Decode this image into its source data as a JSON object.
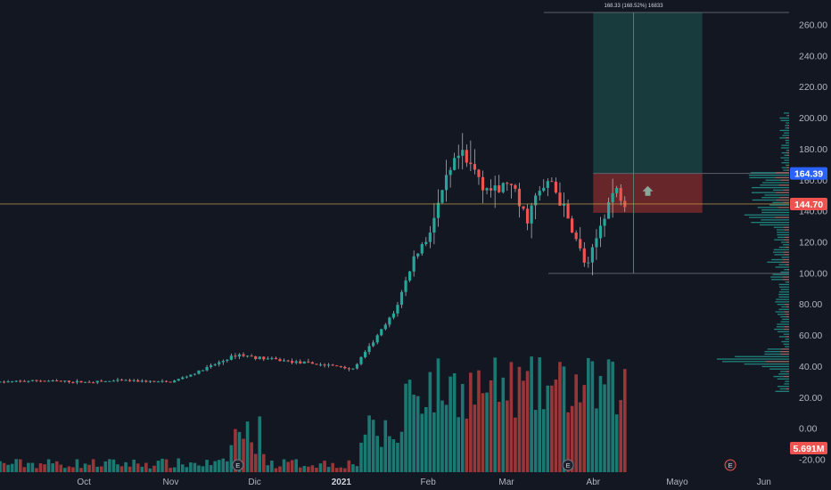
{
  "colors": {
    "background": "#131722",
    "up": "#26a69a",
    "down": "#ef5350",
    "vol_up": "#1f8a80",
    "vol_down": "#b23c3c",
    "axis_text": "#b2b5be",
    "crosshair": "#c8a24a",
    "target_fill": "#1e5b56",
    "stop_fill": "#7d2a2d",
    "price_badge": "#2962ff",
    "last_badge": "#ef5350",
    "profile": "#26a69a"
  },
  "chart_data": {
    "type": "candlestick",
    "price_axis": {
      "ticks": [
        "260.00",
        "240.00",
        "220.00",
        "200.00",
        "180.00",
        "160.00",
        "140.00",
        "120.00",
        "100.00",
        "80.00",
        "60.00",
        "40.00",
        "20.00",
        "0.00",
        "-20.00"
      ],
      "tick_values": [
        260,
        240,
        220,
        200,
        180,
        160,
        140,
        120,
        100,
        80,
        60,
        40,
        20,
        0,
        -20
      ],
      "range": [
        -28,
        268
      ]
    },
    "time_axis": {
      "labels": [
        {
          "text": "Oct",
          "date": "2020-10-01"
        },
        {
          "text": "Nov",
          "date": "2020-11-01"
        },
        {
          "text": "Dic",
          "date": "2020-12-01"
        },
        {
          "text": "2021",
          "date": "2021-01-01"
        },
        {
          "text": "Feb",
          "date": "2021-02-01"
        },
        {
          "text": "Mar",
          "date": "2021-03-01"
        },
        {
          "text": "Abr",
          "date": "2021-04-01"
        },
        {
          "text": "Mayo",
          "date": "2021-05-01"
        },
        {
          "text": "Jun",
          "date": "2021-06-01"
        }
      ],
      "range": [
        "2020-09-01",
        "2021-06-10"
      ]
    },
    "last_price": "144.70",
    "last_price_value": 144.7,
    "crosshair_price": "164.39",
    "crosshair_price_value": 164.39,
    "volume_label": "5.691M",
    "earnings_markers": [
      {
        "label": "E",
        "date": "2020-11-25"
      },
      {
        "label": "E",
        "date": "2021-03-23"
      },
      {
        "label": "E",
        "date": "2021-05-20"
      }
    ],
    "long_position": {
      "info": "168.33 (168.52%) 16833",
      "start_date": "2021-04-01",
      "end_date": "2021-05-10",
      "entry": 164.39,
      "stop": 139,
      "target": 268,
      "range_low": 100
    },
    "price_series": [
      {
        "date": "2020-09-01",
        "close": 30
      },
      {
        "date": "2020-09-15",
        "close": 31
      },
      {
        "date": "2020-10-01",
        "close": 30
      },
      {
        "date": "2020-10-15",
        "close": 31
      },
      {
        "date": "2020-11-01",
        "close": 30
      },
      {
        "date": "2020-11-10",
        "close": 36
      },
      {
        "date": "2020-11-25",
        "close": 48
      },
      {
        "date": "2020-12-01",
        "close": 46
      },
      {
        "date": "2020-12-15",
        "close": 43
      },
      {
        "date": "2021-01-01",
        "close": 40
      },
      {
        "date": "2021-01-05",
        "close": 38
      },
      {
        "date": "2021-01-12",
        "close": 55
      },
      {
        "date": "2021-01-20",
        "close": 75
      },
      {
        "date": "2021-01-27",
        "close": 110
      },
      {
        "date": "2021-02-01",
        "close": 125
      },
      {
        "date": "2021-02-08",
        "close": 160
      },
      {
        "date": "2021-02-12",
        "close": 175
      },
      {
        "date": "2021-02-18",
        "close": 165
      },
      {
        "date": "2021-02-25",
        "close": 150
      },
      {
        "date": "2021-03-01",
        "close": 160
      },
      {
        "date": "2021-03-08",
        "close": 135
      },
      {
        "date": "2021-03-12",
        "close": 150
      },
      {
        "date": "2021-03-17",
        "close": 160
      },
      {
        "date": "2021-03-24",
        "close": 130
      },
      {
        "date": "2021-03-30",
        "close": 102
      },
      {
        "date": "2021-04-05",
        "close": 140
      },
      {
        "date": "2021-04-09",
        "close": 155
      },
      {
        "date": "2021-04-13",
        "close": 144.7
      }
    ]
  }
}
